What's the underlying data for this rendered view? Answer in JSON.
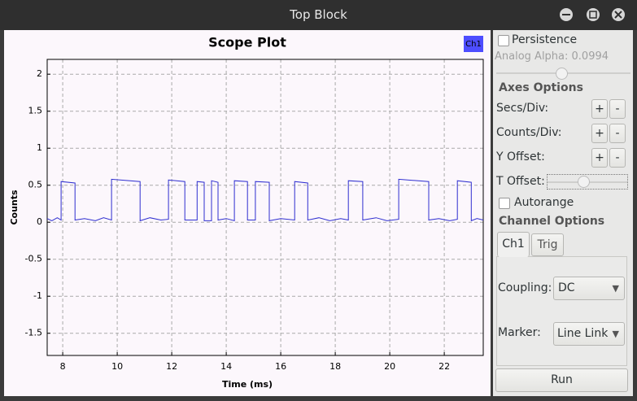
{
  "window_title": "Top Block",
  "chart_data": {
    "type": "line",
    "title": "Scope Plot",
    "x_label": "Time (ms)",
    "y_label": "Counts",
    "x": [
      7.43,
      7.6,
      7.8,
      7.94,
      7.94,
      8.45,
      8.45,
      8.8,
      9.2,
      9.5,
      9.79,
      9.79,
      10.84,
      10.84,
      11.2,
      11.6,
      11.88,
      11.88,
      12.48,
      12.48,
      12.93,
      12.93,
      13.19,
      13.19,
      13.46,
      13.46,
      13.7,
      13.7,
      14.0,
      14.3,
      14.3,
      14.78,
      14.78,
      15.07,
      15.07,
      15.58,
      15.58,
      16.0,
      16.51,
      16.51,
      16.99,
      16.99,
      17.4,
      17.8,
      18.2,
      18.48,
      18.48,
      19.01,
      19.01,
      19.5,
      19.9,
      20.33,
      20.33,
      21.43,
      21.43,
      21.8,
      22.2,
      22.48,
      22.48,
      22.99,
      22.99,
      23.2,
      23.43
    ],
    "series": [
      {
        "name": "Ch1",
        "color": "#2f2fd0",
        "values": [
          0.05,
          0.02,
          0.06,
          0.03,
          0.55,
          0.53,
          0.03,
          0.05,
          0.02,
          0.06,
          0.03,
          0.58,
          0.55,
          0.02,
          0.06,
          0.03,
          0.04,
          0.57,
          0.55,
          0.03,
          0.03,
          0.55,
          0.54,
          0.02,
          0.02,
          0.56,
          0.54,
          0.03,
          0.05,
          0.02,
          0.56,
          0.55,
          0.03,
          0.03,
          0.55,
          0.54,
          0.02,
          0.05,
          0.03,
          0.55,
          0.53,
          0.03,
          0.06,
          0.02,
          0.05,
          0.03,
          0.56,
          0.55,
          0.03,
          0.06,
          0.02,
          0.04,
          0.58,
          0.55,
          0.03,
          0.05,
          0.02,
          0.04,
          0.56,
          0.54,
          0.02,
          0.05,
          0.03
        ]
      }
    ],
    "legend_color": "#4d4dff",
    "xlim": [
      7.43,
      23.43
    ],
    "ylim": [
      -1.8,
      2.2
    ],
    "xticks": [
      8,
      10,
      12,
      14,
      16,
      18,
      20,
      22
    ],
    "yticks": [
      -1.5,
      -1,
      -0.5,
      0,
      0.5,
      1,
      1.5,
      2
    ],
    "grid": true
  },
  "panel": {
    "persistence": "Persistence",
    "analog_alpha": "Analog Alpha: 0.0994",
    "axes_options": "Axes Options",
    "rows": [
      {
        "label": "Secs/Div:",
        "plus": "+",
        "minus": "-"
      },
      {
        "label": "Counts/Div:",
        "plus": "+",
        "minus": "-"
      },
      {
        "label": "Y Offset:",
        "plus": "+",
        "minus": "-"
      }
    ],
    "t_offset": "T Offset:",
    "autorange": "Autorange",
    "channel_options": "Channel Options",
    "tabs": [
      "Ch1",
      "Trig"
    ],
    "coupling": {
      "label": "Coupling:",
      "value": "DC"
    },
    "marker": {
      "label": "Marker:",
      "value": "Line Link"
    },
    "run": "Run"
  }
}
